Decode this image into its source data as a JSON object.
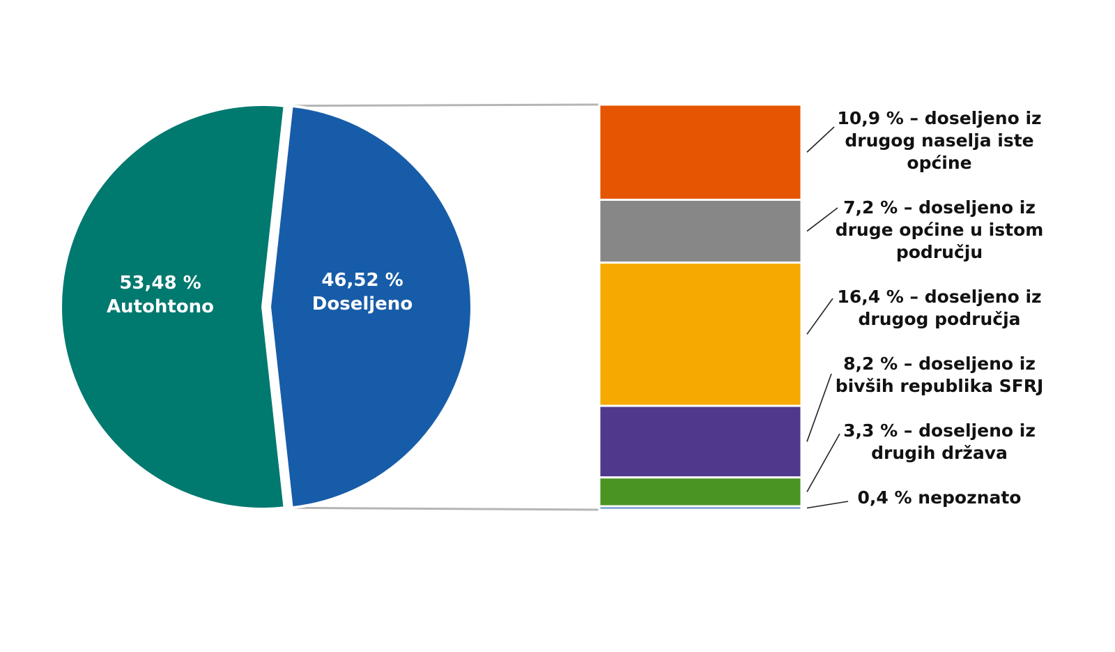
{
  "chart_data": {
    "type": "bar-of-pie",
    "pie": {
      "slices": [
        {
          "label": "Autohtono",
          "value": 53.48,
          "value_text": "53,48 %",
          "color": "#00796F"
        },
        {
          "label": "Doseljeno",
          "value": 46.52,
          "value_text": "46,52 %",
          "color": "#175CA8"
        }
      ]
    },
    "bar": {
      "segments": [
        {
          "value": 10.9,
          "lines": [
            "10,9 % – doseljeno iz",
            "drugog naselja iste",
            "općine"
          ],
          "color": "#E65502"
        },
        {
          "value": 7.2,
          "lines": [
            "7,2 % – doseljeno iz",
            "druge općine u istom",
            "području"
          ],
          "color": "#878787"
        },
        {
          "value": 16.4,
          "lines": [
            "16,4 % – doseljeno iz",
            "drugog područja"
          ],
          "color": "#F6A901"
        },
        {
          "value": 8.2,
          "lines": [
            "8,2 % – doseljeno iz",
            "bivših republika SFRJ"
          ],
          "color": "#4F398D"
        },
        {
          "value": 3.3,
          "lines": [
            "3,3 % – doseljeno iz",
            "drugih država"
          ],
          "color": "#4A9423"
        },
        {
          "value": 0.4,
          "lines": [
            "0,4 % nepoznato"
          ],
          "color": "#5B8CCB"
        }
      ]
    }
  }
}
